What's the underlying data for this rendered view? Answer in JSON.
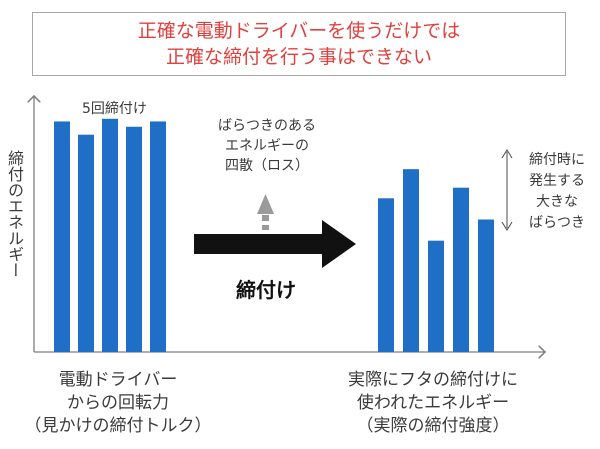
{
  "headline": {
    "line1": "正確な電動ドライバーを使うだけでは",
    "line2": "正確な締付を行う事はできない"
  },
  "y_axis_label": "締付のエネルギー",
  "left_group": {
    "label": "5回締付け",
    "caption_lines": [
      "電動ドライバー",
      "からの回転力",
      "（見かけの締付トルク）"
    ]
  },
  "middle": {
    "loss_lines": [
      "ばらつきのある",
      "エネルギーの",
      "四散（ロス）"
    ],
    "arrow_label": "締付け"
  },
  "right_group": {
    "caption_lines": [
      "実際にフタの締付けに",
      "使われたエネルギー",
      "（実際の締付強度）"
    ],
    "variation_lines": [
      "締付時に",
      "発生する",
      "大きな",
      "ばらつき"
    ]
  },
  "colors": {
    "bar": "#1f6fc6",
    "headline_text": "#e0413f",
    "arrow": "#111111",
    "loss_arrow": "#9a9a9a",
    "axis": "#7f7f7f"
  },
  "chart_data": {
    "type": "bar",
    "unit": "relative energy (0–100)",
    "series": [
      {
        "values": [
          87,
          82,
          88,
          85,
          87
        ]
      },
      {
        "values": [
          58,
          69,
          42,
          62,
          50
        ]
      }
    ],
    "ylim": [
      0,
      100
    ]
  }
}
